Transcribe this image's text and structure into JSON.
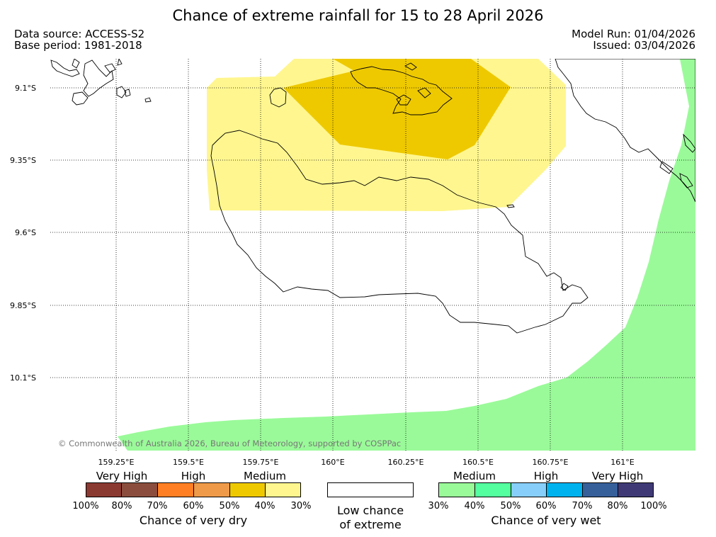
{
  "title": "Chance of extreme rainfall for 15 to 28 April 2026",
  "meta": {
    "data_source": "Data source: ACCESS-S2",
    "base_period": "Base period: 1981-2018",
    "model_run": "Model Run: 01/04/2026",
    "issued": "Issued: 03/04/2026"
  },
  "map": {
    "lat_labels": [
      "9.1°S",
      "9.35°S",
      "9.6°S",
      "9.85°S",
      "10.1°S"
    ],
    "lon_labels": [
      "159.25°E",
      "159.5°E",
      "159.75°E",
      "160°E",
      "160.25°E",
      "160.5°E",
      "160.75°E",
      "161°E"
    ],
    "copyright": "© Commonwealth of Australia 2026, Bureau of Meteorology, supported by COSPPac",
    "regions": [
      {
        "category": "dry-medium-30-40",
        "color": "#fff68f"
      },
      {
        "category": "dry-medium-40-50",
        "color": "#eec900"
      },
      {
        "category": "wet-medium-30-40",
        "color": "#9afa99"
      }
    ]
  },
  "legend": {
    "dry": {
      "headings": [
        "Very High",
        "High",
        "Medium"
      ],
      "colors": [
        "#8b3a32",
        "#8b4e3e",
        "#ff7f24",
        "#ee9a49",
        "#eec900",
        "#fff68f"
      ],
      "ticks": [
        "100%",
        "80%",
        "70%",
        "60%",
        "50%",
        "40%",
        "30%"
      ],
      "caption": "Chance of very dry"
    },
    "low": {
      "color": "#ffffff",
      "caption_line1": "Low chance",
      "caption_line2": "of extreme"
    },
    "wet": {
      "headings": [
        "Medium",
        "High",
        "Very High"
      ],
      "colors": [
        "#9afa99",
        "#54ff9f",
        "#87cefa",
        "#00b2ee",
        "#36609a",
        "#3f3a76"
      ],
      "ticks": [
        "30%",
        "40%",
        "50%",
        "60%",
        "70%",
        "80%",
        "100%"
      ],
      "caption": "Chance of very wet"
    }
  }
}
